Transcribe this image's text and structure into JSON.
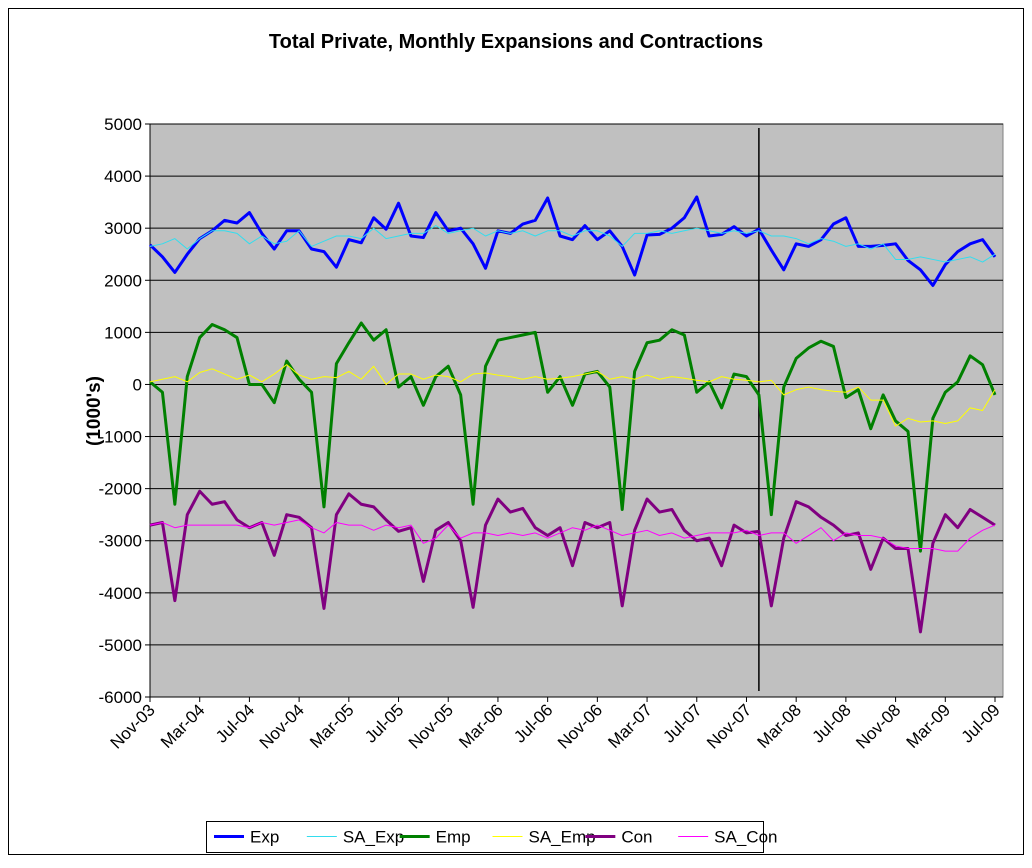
{
  "chart_data": {
    "type": "line",
    "title": "Total Private, Monthly Expansions and Contractions",
    "y_label": "(1000's)",
    "categories": [
      "Nov-03",
      null,
      null,
      null,
      "Mar-04",
      null,
      null,
      null,
      "Jul-04",
      null,
      null,
      null,
      "Nov-04",
      null,
      null,
      null,
      "Mar-05",
      null,
      null,
      null,
      "Jul-05",
      null,
      null,
      null,
      "Nov-05",
      null,
      null,
      null,
      "Mar-06",
      null,
      null,
      null,
      "Jul-06",
      null,
      null,
      null,
      "Nov-06",
      null,
      null,
      null,
      "Mar-07",
      null,
      null,
      null,
      "Jul-07",
      null,
      null,
      null,
      "Nov-07",
      null,
      null,
      null,
      "Mar-08",
      null,
      null,
      null,
      "Jul-08",
      null,
      null,
      null,
      "Nov-08",
      null,
      null,
      null,
      "Mar-09",
      null,
      null,
      null,
      "Jul-09"
    ],
    "ylim": [
      -6000,
      5000
    ],
    "yticks": [
      -6000,
      -5000,
      -4000,
      -3000,
      -2000,
      -1000,
      0,
      1000,
      2000,
      3000,
      4000,
      5000
    ],
    "grid": true,
    "vline_at": 49,
    "series": [
      {
        "name": "Exp",
        "color": "#0000ff",
        "width": 3,
        "values": [
          2680,
          2450,
          2150,
          2500,
          2800,
          2950,
          3150,
          3100,
          3300,
          2900,
          2600,
          2950,
          2950,
          2600,
          2550,
          2250,
          2780,
          2720,
          3200,
          2980,
          3480,
          2850,
          2820,
          3300,
          2950,
          3000,
          2700,
          2230,
          2950,
          2900,
          3080,
          3150,
          3580,
          2850,
          2780,
          3050,
          2780,
          2950,
          2650,
          2100,
          2870,
          2880,
          3000,
          3200,
          3600,
          2850,
          2880,
          3030,
          2850,
          2980,
          2580,
          2200,
          2700,
          2650,
          2780,
          3080,
          3200,
          2650,
          2650,
          2670,
          2700,
          2380,
          2200,
          1900,
          2300,
          2550,
          2700,
          2780,
          2450
        ]
      },
      {
        "name": "SA_Exp",
        "color": "#33ddee",
        "width": 1,
        "values": [
          2650,
          2700,
          2800,
          2600,
          2800,
          2950,
          2950,
          2900,
          2700,
          2850,
          2700,
          2750,
          2950,
          2650,
          2750,
          2850,
          2850,
          2800,
          3000,
          2800,
          2850,
          2900,
          2900,
          3050,
          2900,
          2950,
          3000,
          2850,
          2950,
          2900,
          2950,
          2850,
          2950,
          2950,
          2850,
          2950,
          2950,
          2850,
          2650,
          2900,
          2900,
          2950,
          2900,
          2950,
          3000,
          2950,
          2900,
          2950,
          2900,
          2950,
          2850,
          2850,
          2800,
          2700,
          2800,
          2750,
          2650,
          2700,
          2600,
          2700,
          2400,
          2400,
          2450,
          2400,
          2350,
          2400,
          2450,
          2350,
          2500
        ]
      },
      {
        "name": "Emp",
        "color": "#008000",
        "width": 3,
        "values": [
          50,
          -150,
          -2300,
          150,
          900,
          1150,
          1050,
          900,
          0,
          0,
          -350,
          450,
          100,
          -150,
          -2350,
          400,
          800,
          1180,
          850,
          1050,
          -50,
          150,
          -400,
          150,
          350,
          -200,
          -2300,
          350,
          850,
          900,
          950,
          1000,
          -150,
          150,
          -400,
          200,
          250,
          -50,
          -2400,
          250,
          800,
          850,
          1050,
          950,
          -150,
          50,
          -450,
          200,
          150,
          -200,
          -2500,
          -50,
          500,
          700,
          830,
          730,
          -250,
          -100,
          -850,
          -200,
          -700,
          -900,
          -3200,
          -650,
          -150,
          50,
          550,
          380,
          -200
        ]
      },
      {
        "name": "SA_Emp",
        "color": "#ffff00",
        "width": 1,
        "values": [
          50,
          100,
          150,
          50,
          230,
          300,
          200,
          100,
          180,
          50,
          200,
          380,
          180,
          100,
          150,
          130,
          250,
          100,
          350,
          0,
          200,
          200,
          100,
          180,
          150,
          50,
          200,
          220,
          180,
          150,
          100,
          150,
          100,
          120,
          150,
          200,
          250,
          100,
          150,
          100,
          180,
          100,
          150,
          120,
          80,
          50,
          150,
          100,
          80,
          50,
          80,
          -200,
          -100,
          -50,
          -100,
          -130,
          -150,
          -50,
          -300,
          -300,
          -800,
          -650,
          -720,
          -700,
          -750,
          -700,
          -450,
          -500,
          -100
        ]
      },
      {
        "name": "Con",
        "color": "#800080",
        "width": 3,
        "values": [
          -2700,
          -2650,
          -4150,
          -2500,
          -2050,
          -2300,
          -2250,
          -2600,
          -2750,
          -2650,
          -3280,
          -2500,
          -2550,
          -2750,
          -4300,
          -2500,
          -2100,
          -2300,
          -2350,
          -2600,
          -2820,
          -2750,
          -3780,
          -2800,
          -2650,
          -3000,
          -4280,
          -2700,
          -2200,
          -2450,
          -2380,
          -2750,
          -2900,
          -2750,
          -3480,
          -2650,
          -2750,
          -2650,
          -4250,
          -2800,
          -2200,
          -2450,
          -2400,
          -2800,
          -3000,
          -2950,
          -3480,
          -2700,
          -2850,
          -2820,
          -4250,
          -2950,
          -2250,
          -2350,
          -2550,
          -2700,
          -2900,
          -2850,
          -3550,
          -2950,
          -3150,
          -3150,
          -4750,
          -3050,
          -2500,
          -2750,
          -2400,
          -2550,
          -2700
        ]
      },
      {
        "name": "SA_Con",
        "color": "#ff00ff",
        "width": 1,
        "values": [
          -2700,
          -2650,
          -2750,
          -2700,
          -2700,
          -2700,
          -2700,
          -2700,
          -2750,
          -2650,
          -2700,
          -2650,
          -2600,
          -2750,
          -2850,
          -2650,
          -2700,
          -2700,
          -2800,
          -2700,
          -2750,
          -2700,
          -3050,
          -2950,
          -2700,
          -2950,
          -2850,
          -2850,
          -2900,
          -2850,
          -2900,
          -2850,
          -2950,
          -2850,
          -2750,
          -2800,
          -2700,
          -2800,
          -2900,
          -2850,
          -2800,
          -2900,
          -2850,
          -2950,
          -2900,
          -2850,
          -2850,
          -2850,
          -2800,
          -2900,
          -2850,
          -2850,
          -3050,
          -2900,
          -2750,
          -3000,
          -2850,
          -2900,
          -2900,
          -2950,
          -3100,
          -3150,
          -3150,
          -3150,
          -3200,
          -3200,
          -2950,
          -2800,
          -2700
        ]
      }
    ]
  }
}
